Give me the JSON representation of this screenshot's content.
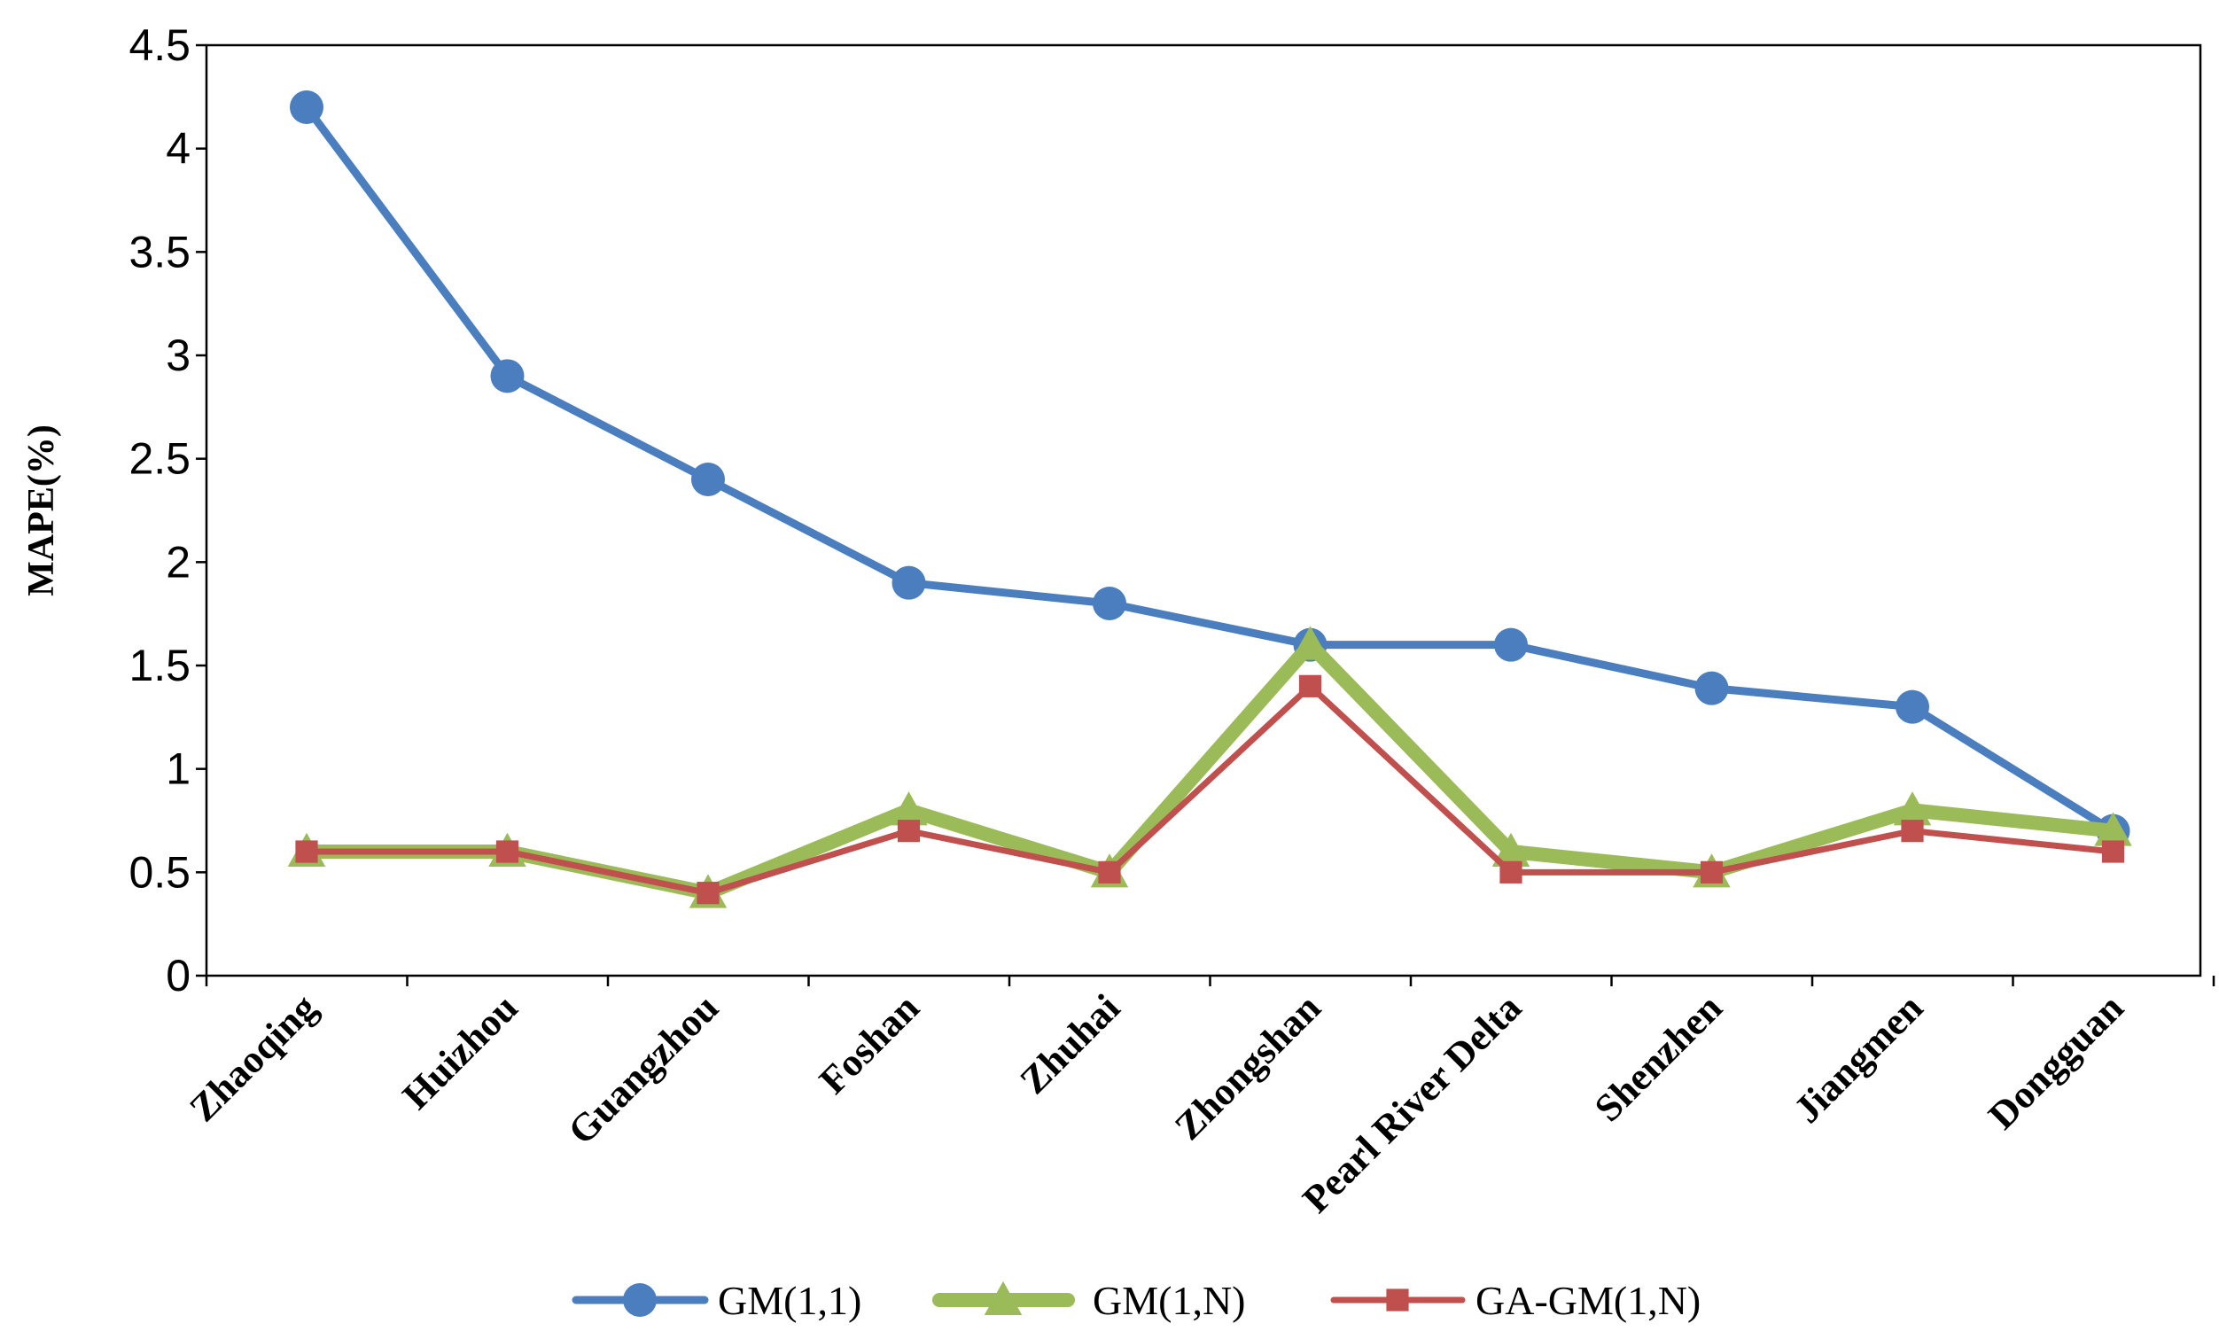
{
  "chart_data": {
    "type": "line",
    "title": "",
    "xlabel": "",
    "ylabel": "MAPE(%)",
    "ylim": [
      0,
      4.5
    ],
    "yticks": [
      "0",
      "0.5",
      "1",
      "1.5",
      "2",
      "2.5",
      "3",
      "3.5",
      "4",
      "4.5"
    ],
    "categories": [
      "Zhaoqing",
      "Huizhou",
      "Guangzhou",
      "Foshan",
      "Zhuhai",
      "Zhongshan",
      "Pearl River Delta",
      "Shenzhen",
      "Jiangmen",
      "Dongguan"
    ],
    "series": [
      {
        "name": "GM(1,1)",
        "color": "#4a7ebf",
        "marker": "circle",
        "values": [
          4.2,
          2.9,
          2.4,
          1.9,
          1.8,
          1.6,
          1.6,
          1.39,
          1.3,
          0.7
        ]
      },
      {
        "name": "GM(1,N)",
        "color": "#9bbb59",
        "marker": "triangle",
        "values": [
          0.6,
          0.6,
          0.4,
          0.8,
          0.5,
          1.6,
          0.6,
          0.5,
          0.8,
          0.7
        ]
      },
      {
        "name": "GA-GM(1,N)",
        "color": "#c0504d",
        "marker": "square",
        "values": [
          0.6,
          0.6,
          0.4,
          0.7,
          0.5,
          1.4,
          0.5,
          0.5,
          0.7,
          0.6
        ]
      }
    ],
    "grid": false,
    "legend": "bottom"
  }
}
